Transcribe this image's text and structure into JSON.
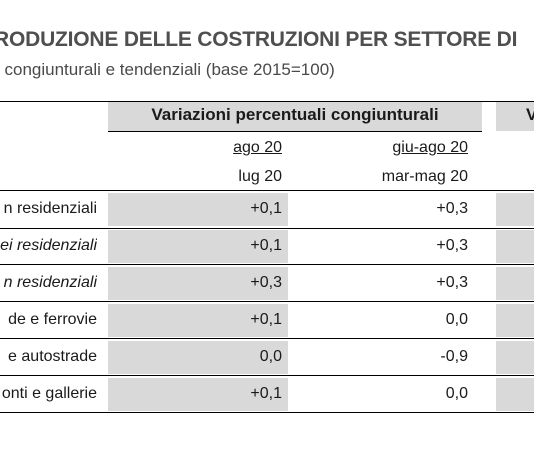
{
  "header": {
    "title": "RODUZIONE DELLE COSTRUZIONI PER SETTORE DI",
    "subtitle": "i congiunturali e tendenziali (base 2015=100)"
  },
  "table": {
    "group_header": "Variazioni percentuali congiunturali",
    "group_header_next": "V",
    "columns": [
      {
        "top": "ago 20",
        "bottom": "lug 20"
      },
      {
        "top": "giu-ago 20",
        "bottom": "mar-mag 20"
      }
    ],
    "rows": [
      {
        "label": "n residenziali",
        "italic": false,
        "values": [
          "+0,1",
          "+0,3"
        ]
      },
      {
        "label": "ei residenziali",
        "italic": true,
        "values": [
          "+0,1",
          "+0,3"
        ]
      },
      {
        "label": "n residenziali",
        "italic": true,
        "values": [
          "+0,3",
          "+0,3"
        ]
      },
      {
        "label": "de e ferrovie",
        "italic": false,
        "values": [
          "+0,1",
          "0,0"
        ]
      },
      {
        "label": "e autostrade",
        "italic": false,
        "values": [
          "0,0",
          "-0,9"
        ]
      },
      {
        "label": "onti e gallerie",
        "italic": false,
        "values": [
          "+0,1",
          "0,0"
        ]
      }
    ]
  }
}
